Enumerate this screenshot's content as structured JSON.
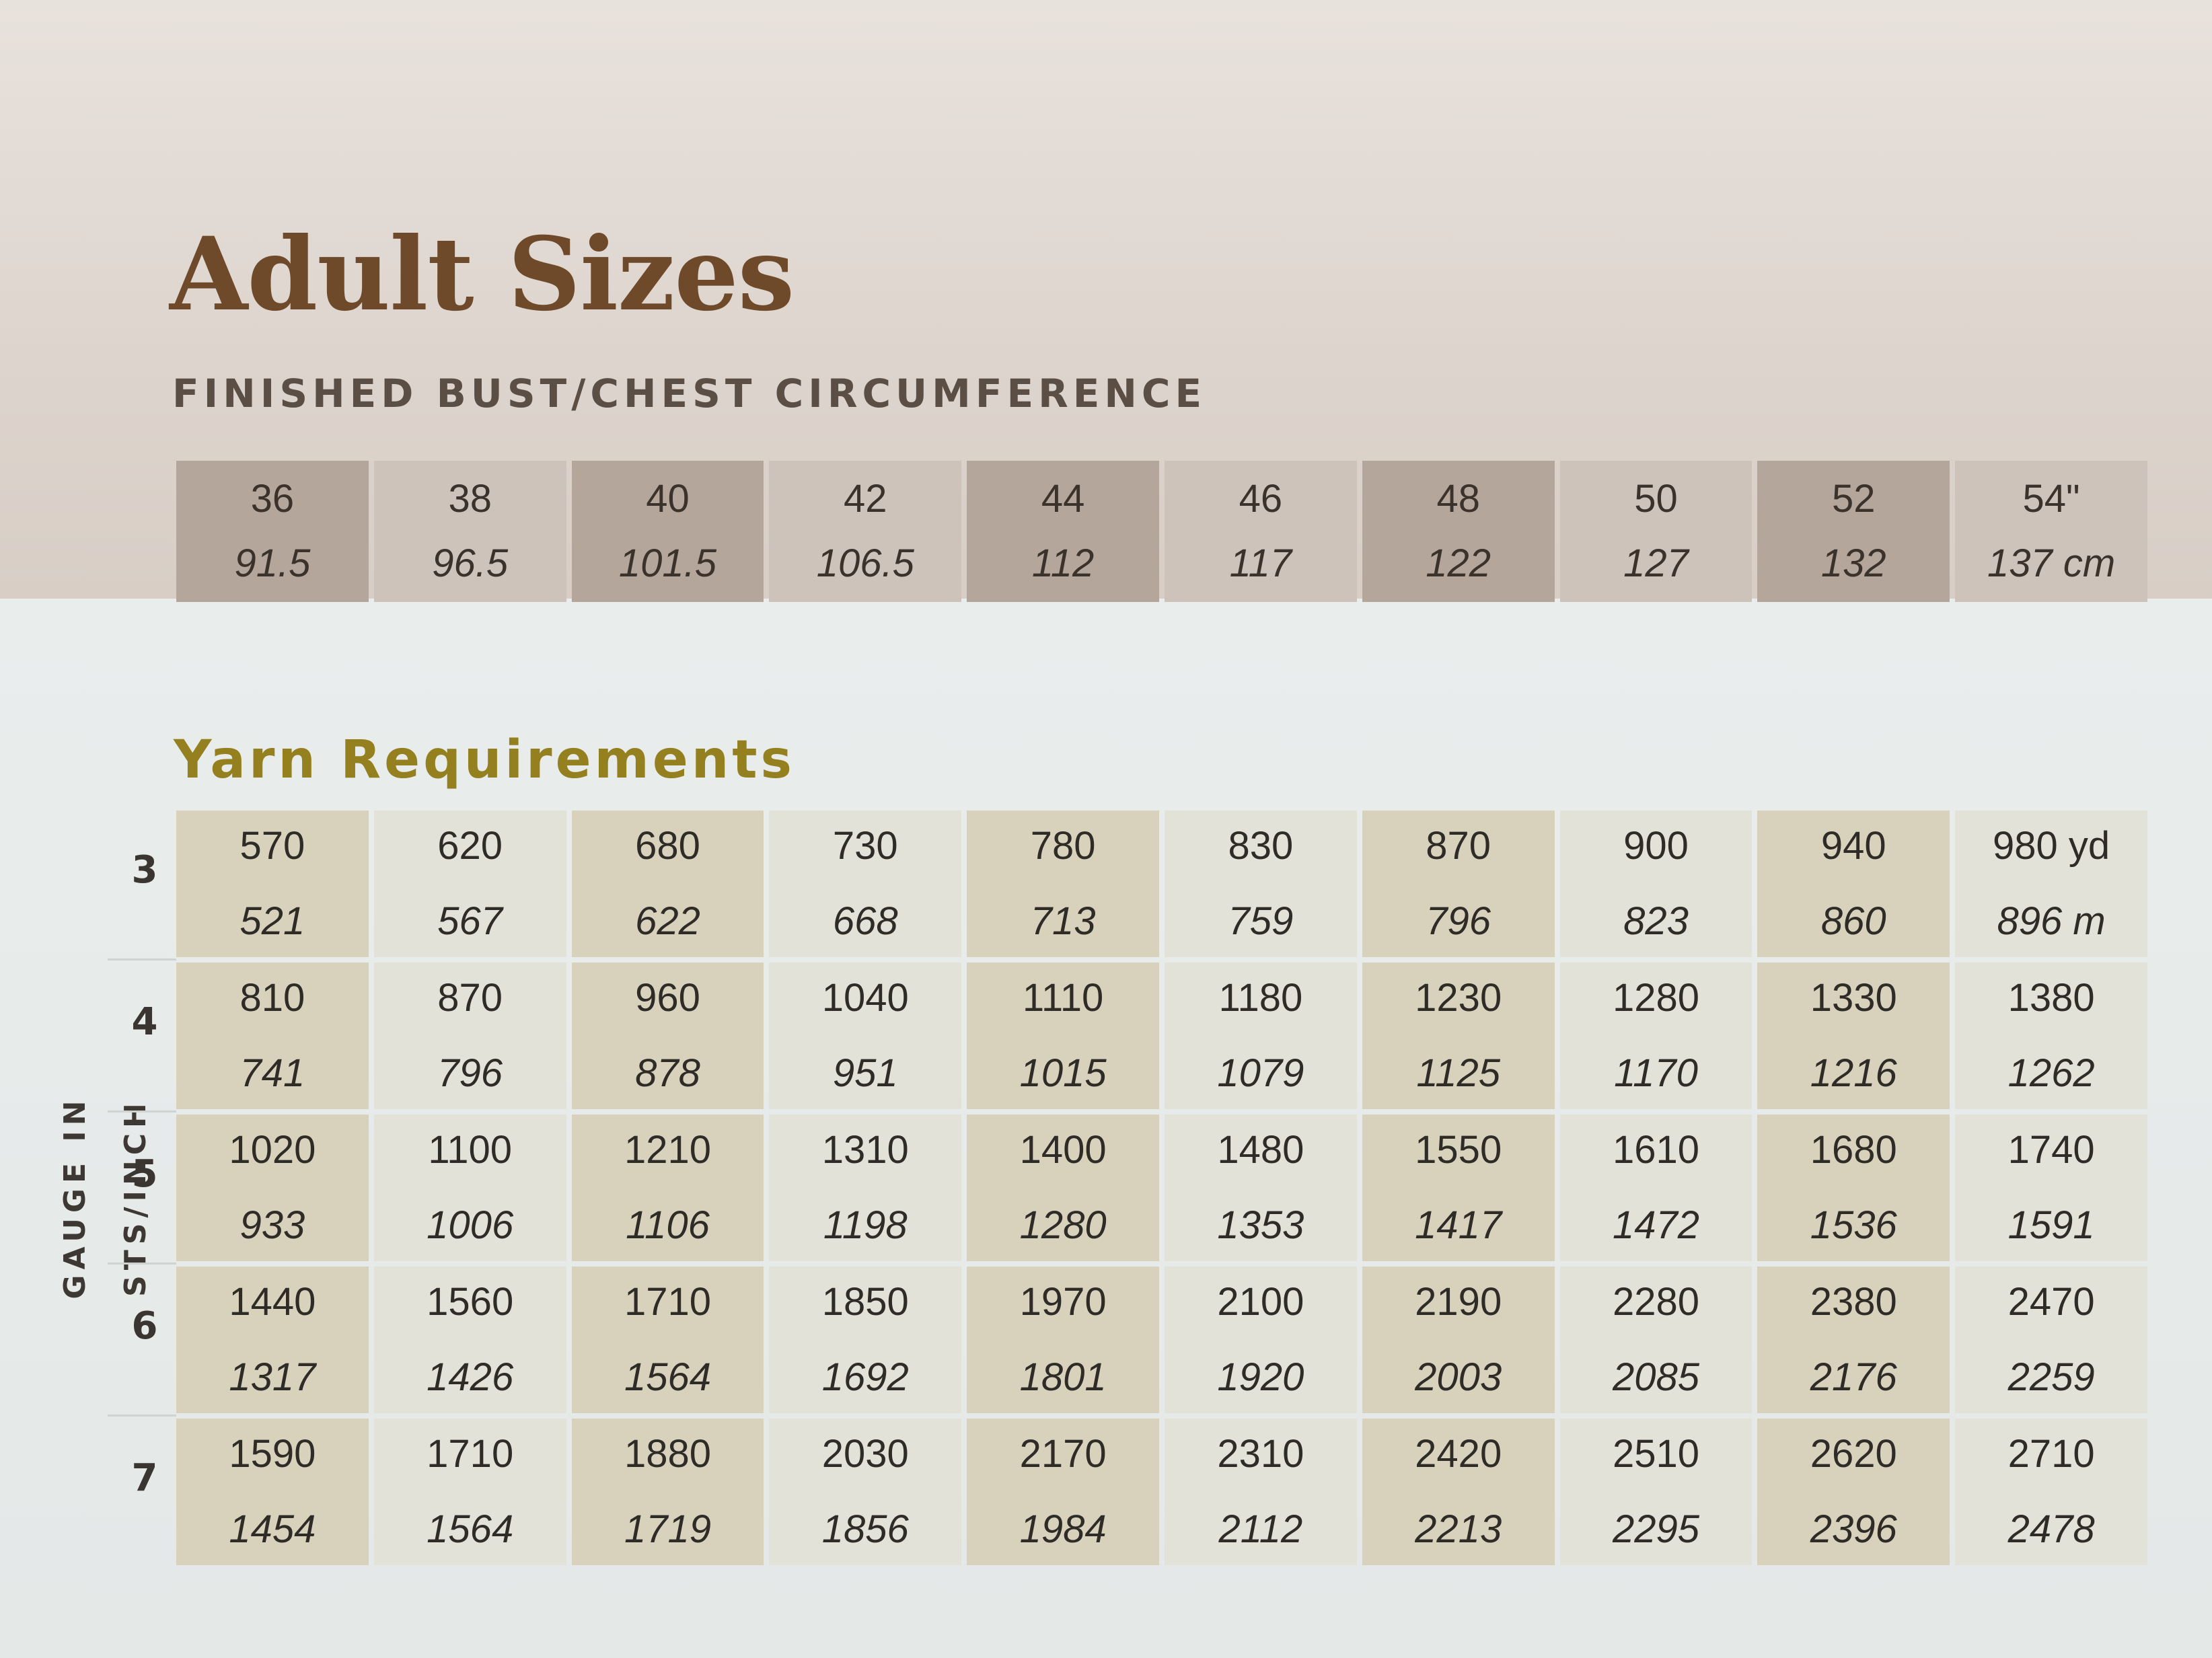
{
  "title": "Adult Sizes",
  "subtitle": "FINISHED BUST/CHEST CIRCUMFERENCE",
  "sizes": [
    {
      "inch": "36",
      "cm": "91.5"
    },
    {
      "inch": "38",
      "cm": "96.5"
    },
    {
      "inch": "40",
      "cm": "101.5"
    },
    {
      "inch": "42",
      "cm": "106.5"
    },
    {
      "inch": "44",
      "cm": "112"
    },
    {
      "inch": "46",
      "cm": "117"
    },
    {
      "inch": "48",
      "cm": "122"
    },
    {
      "inch": "50",
      "cm": "127"
    },
    {
      "inch": "52",
      "cm": "132"
    },
    {
      "inch": "54\"",
      "cm": "137 cm"
    }
  ],
  "yarn_title": "Yarn Requirements",
  "gauge_label": "GAUGE IN STS/INCH",
  "gauges": [
    {
      "gauge": "3",
      "yards": [
        "570",
        "620",
        "680",
        "730",
        "780",
        "830",
        "870",
        "900",
        "940",
        "980 yd"
      ],
      "meters": [
        "521",
        "567",
        "622",
        "668",
        "713",
        "759",
        "796",
        "823",
        "860",
        "896 m"
      ]
    },
    {
      "gauge": "4",
      "yards": [
        "810",
        "870",
        "960",
        "1040",
        "1110",
        "1180",
        "1230",
        "1280",
        "1330",
        "1380"
      ],
      "meters": [
        "741",
        "796",
        "878",
        "951",
        "1015",
        "1079",
        "1125",
        "1170",
        "1216",
        "1262"
      ]
    },
    {
      "gauge": "5",
      "yards": [
        "1020",
        "1100",
        "1210",
        "1310",
        "1400",
        "1480",
        "1550",
        "1610",
        "1680",
        "1740"
      ],
      "meters": [
        "933",
        "1006",
        "1106",
        "1198",
        "1280",
        "1353",
        "1417",
        "1472",
        "1536",
        "1591"
      ]
    },
    {
      "gauge": "6",
      "yards": [
        "1440",
        "1560",
        "1710",
        "1850",
        "1970",
        "2100",
        "2190",
        "2280",
        "2380",
        "2470"
      ],
      "meters": [
        "1317",
        "1426",
        "1564",
        "1692",
        "1801",
        "1920",
        "2003",
        "2085",
        "2176",
        "2259"
      ]
    },
    {
      "gauge": "7",
      "yards": [
        "1590",
        "1710",
        "1880",
        "2030",
        "2170",
        "2310",
        "2420",
        "2510",
        "2620",
        "2710"
      ],
      "meters": [
        "1454",
        "1564",
        "1719",
        "1856",
        "1984",
        "2112",
        "2213",
        "2295",
        "2396",
        "2478"
      ]
    }
  ],
  "colors": {
    "title": "#6e4a2a",
    "yarn_title": "#94801e",
    "size_dark": "#b4a69b",
    "size_light": "#cdc3ba",
    "yarn_dark": "#d8d2bd",
    "yarn_light": "#e2e2d8"
  }
}
